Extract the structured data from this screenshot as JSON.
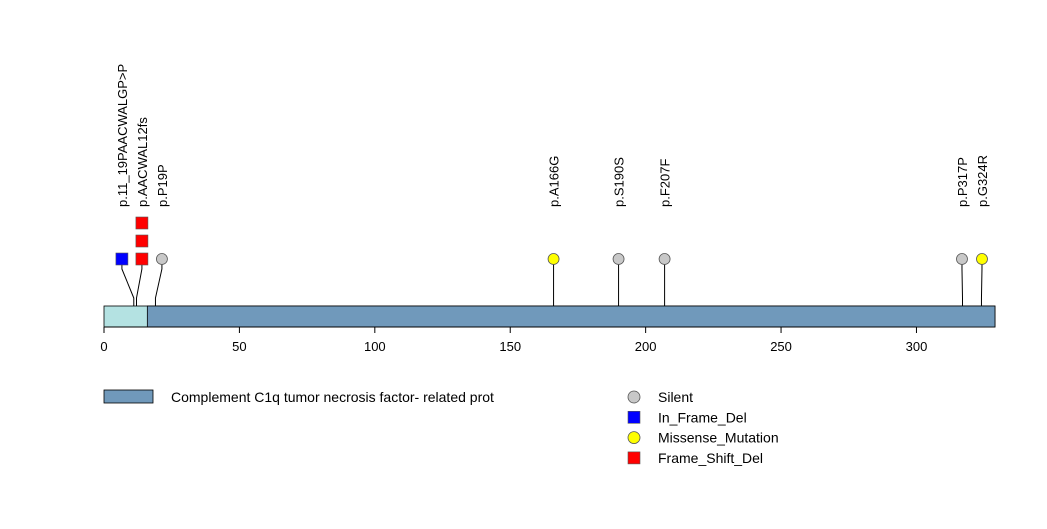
{
  "chart_data": {
    "type": "lollipop",
    "x_axis": {
      "min": 0,
      "max": 329,
      "ticks": [
        0,
        50,
        100,
        150,
        200,
        250,
        300
      ]
    },
    "protein": {
      "length": 329,
      "base_color": "#b4e2e2",
      "domains": [
        {
          "name": "Complement C1q tumor necrosis factor- related prot",
          "start": 16,
          "end": 329,
          "color": "#7099bb"
        }
      ]
    },
    "mutations": [
      {
        "label": "p.11_19PAACWALGP>P",
        "position": 11,
        "count": 1,
        "type": "In_Frame_Del"
      },
      {
        "label": "p.AACWAL12fs",
        "position": 12,
        "count": 3,
        "type": "Frame_Shift_Del"
      },
      {
        "label": "p.P19P",
        "position": 19,
        "count": 1,
        "type": "Silent"
      },
      {
        "label": "p.A166G",
        "position": 166,
        "count": 1,
        "type": "Missense_Mutation"
      },
      {
        "label": "p.S190S",
        "position": 190,
        "count": 1,
        "type": "Silent"
      },
      {
        "label": "p.F207F",
        "position": 207,
        "count": 1,
        "type": "Silent"
      },
      {
        "label": "p.P317P",
        "position": 317,
        "count": 1,
        "type": "Silent"
      },
      {
        "label": "p.G324R",
        "position": 324,
        "count": 1,
        "type": "Missense_Mutation"
      }
    ],
    "mutation_types": [
      {
        "name": "Silent",
        "shape": "circle",
        "color": "#c8c8c8"
      },
      {
        "name": "In_Frame_Del",
        "shape": "square",
        "color": "#0000ff"
      },
      {
        "name": "Missense_Mutation",
        "shape": "circle",
        "color": "#ffff00"
      },
      {
        "name": "Frame_Shift_Del",
        "shape": "square",
        "color": "#ff0000"
      }
    ]
  }
}
